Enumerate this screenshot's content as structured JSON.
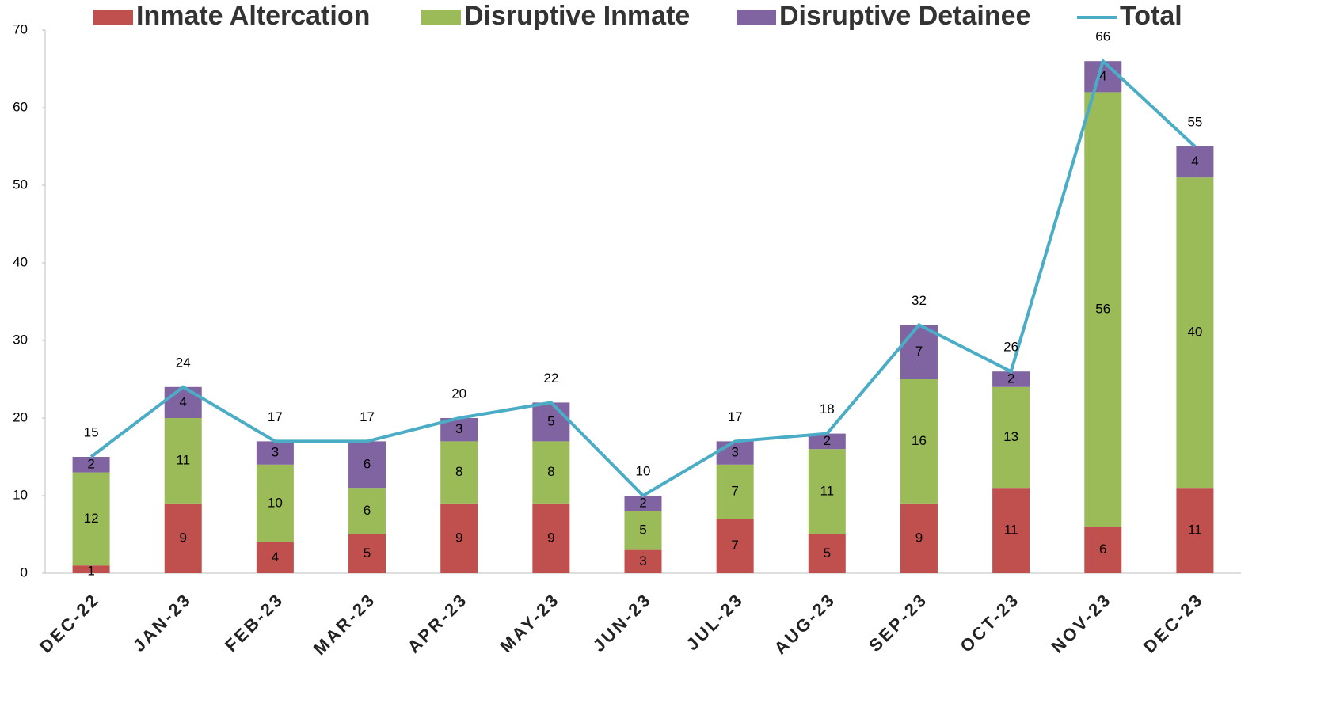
{
  "chart_data": {
    "type": "bar",
    "stacked": true,
    "categories": [
      "DEC-22",
      "JAN-23",
      "FEB-23",
      "MAR-23",
      "APR-23",
      "MAY-23",
      "JUN-23",
      "JUL-23",
      "AUG-23",
      "SEP-23",
      "OCT-23",
      "NOV-23",
      "DEC-23"
    ],
    "series": [
      {
        "name": "Inmate Altercation",
        "color": "#c0504d",
        "type": "bar",
        "values": [
          1,
          9,
          4,
          5,
          9,
          9,
          3,
          7,
          5,
          9,
          11,
          6,
          11
        ]
      },
      {
        "name": "Disruptive Inmate",
        "color": "#9bbb59",
        "type": "bar",
        "values": [
          12,
          11,
          10,
          6,
          8,
          8,
          5,
          7,
          11,
          16,
          13,
          56,
          40
        ]
      },
      {
        "name": "Disruptive Detainee",
        "color": "#8064a2",
        "type": "bar",
        "values": [
          2,
          4,
          3,
          6,
          3,
          5,
          2,
          3,
          2,
          7,
          2,
          4,
          4
        ]
      },
      {
        "name": "Total",
        "color": "#4bacc6",
        "type": "line",
        "values": [
          15,
          24,
          17,
          17,
          20,
          22,
          10,
          17,
          18,
          32,
          26,
          66,
          55
        ]
      }
    ],
    "ylim": [
      0,
      70
    ],
    "yticks": [
      0,
      10,
      20,
      30,
      40,
      50,
      60,
      70
    ],
    "grid": false,
    "legend": "top"
  }
}
